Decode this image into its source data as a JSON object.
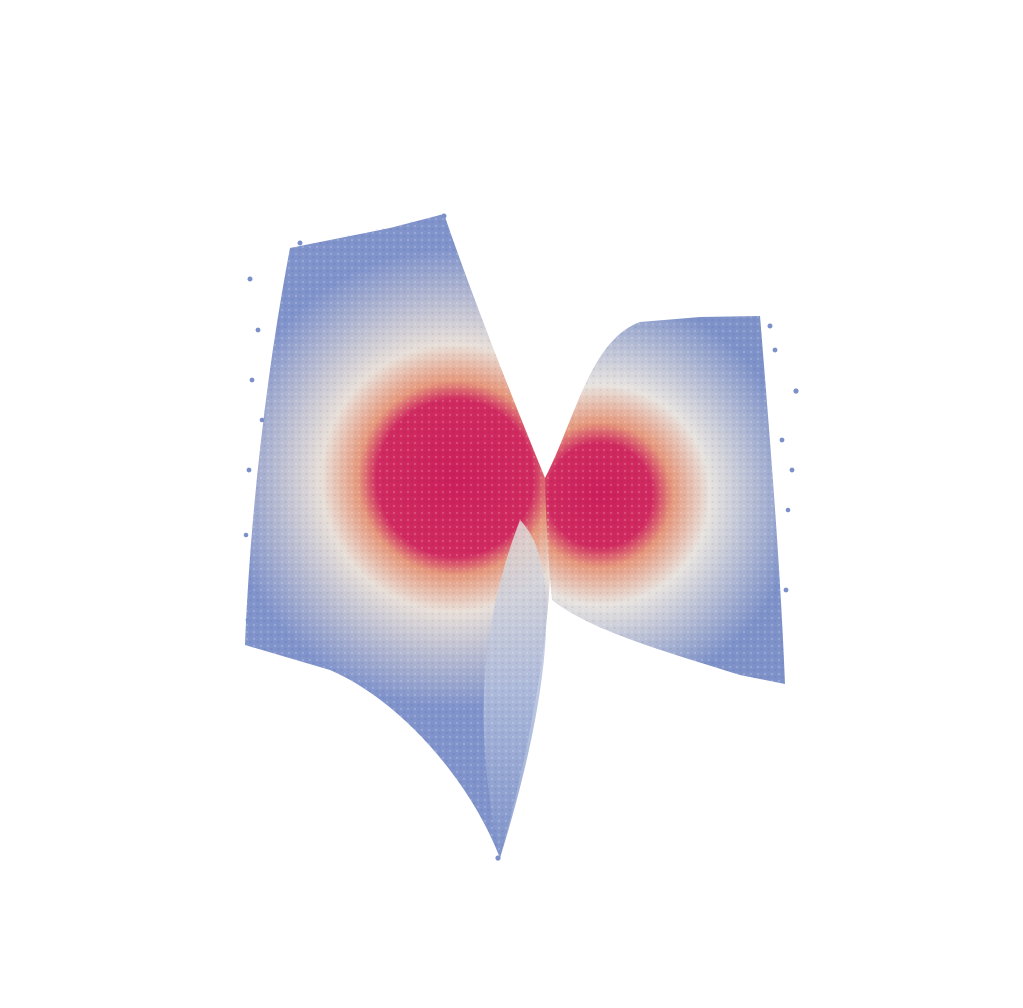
{
  "image": {
    "subject": "point-cloud-saddle-surface",
    "background_color": "#ffffff",
    "colormap": {
      "low": "#6f86c4",
      "mid": "#e9e6e2",
      "warm": "#e9a07e",
      "high": "#d8386a",
      "peak": "#c81e5a"
    }
  }
}
